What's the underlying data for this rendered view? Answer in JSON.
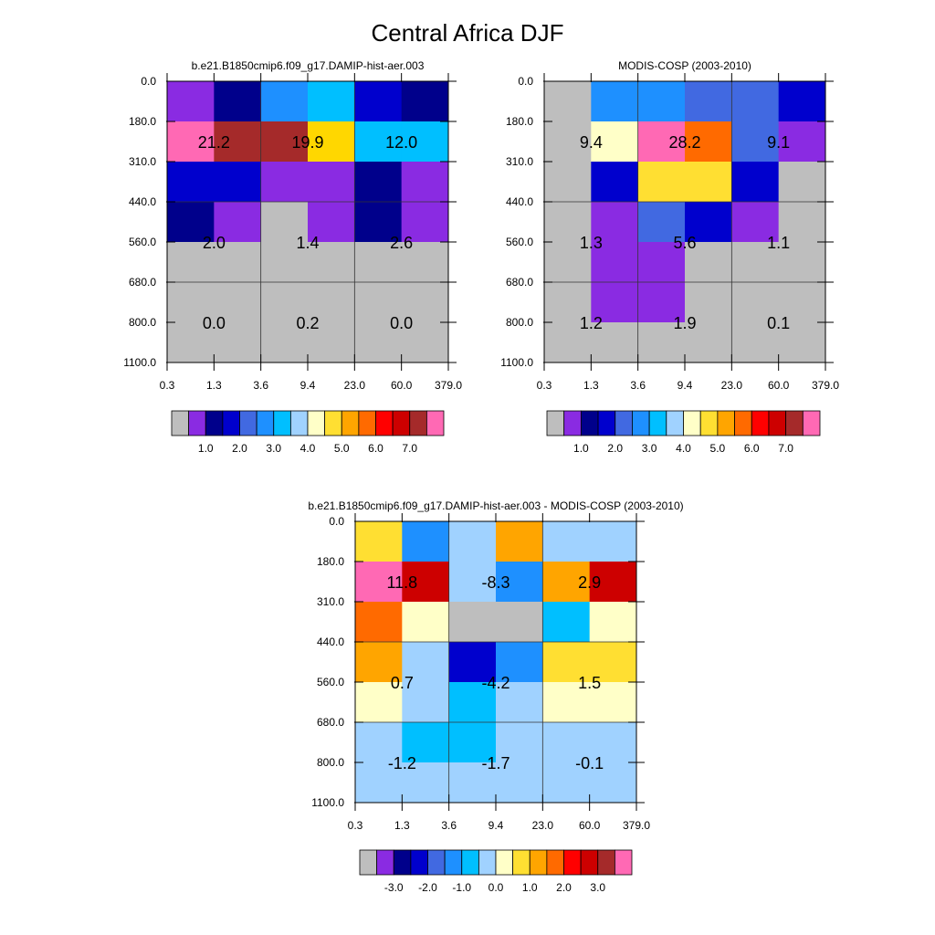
{
  "title": "Central Africa DJF",
  "colors": {
    "frame": "#000000",
    "grid": "#333333"
  },
  "chart_data": [
    {
      "type": "heatmap",
      "title": "b.e21.B1850cmip6.f09_g17.DAMIP-hist-aer.003",
      "x_ticks": [
        "0.3",
        "1.3",
        "3.6",
        "9.4",
        "23.0",
        "60.0",
        "379.0"
      ],
      "y_ticks": [
        "0.0",
        "180.0",
        "310.0",
        "440.0",
        "560.0",
        "680.0",
        "800.0",
        "1100.0"
      ],
      "cell_colors": [
        [
          "#8a2be2",
          "#00008b",
          "#1e90ff",
          "#00bfff",
          "#0000cd",
          "#00008b"
        ],
        [
          "#ff69b4",
          "#a52a2a",
          "#a52a2a",
          "#ffd700",
          "#00bfff",
          "#00bfff"
        ],
        [
          "#0000cd",
          "#0000cd",
          "#8a2be2",
          "#8a2be2",
          "#00008b",
          "#8a2be2"
        ],
        [
          "#00008b",
          "#8a2be2",
          "#bebebe",
          "#8a2be2",
          "#00008b",
          "#8a2be2"
        ],
        [
          "#bebebe",
          "#bebebe",
          "#bebebe",
          "#bebebe",
          "#bebebe",
          "#bebebe"
        ],
        [
          "#bebebe",
          "#bebebe",
          "#bebebe",
          "#bebebe",
          "#bebebe",
          "#bebebe"
        ],
        [
          "#bebebe",
          "#bebebe",
          "#bebebe",
          "#bebebe",
          "#bebebe",
          "#bebebe"
        ]
      ],
      "block_values": [
        "21.2",
        "19.9",
        "12.0",
        "2.0",
        "1.4",
        "2.6",
        "0.0",
        "0.2",
        "0.0"
      ],
      "colorbar": {
        "colors": [
          "#bebebe",
          "#8a2be2",
          "#00008b",
          "#0000cd",
          "#4169e1",
          "#1e90ff",
          "#00bfff",
          "#a0d2ff",
          "#ffffc8",
          "#ffdf32",
          "#ffa500",
          "#ff6a00",
          "#ff0000",
          "#cd0000",
          "#a52a2a",
          "#ff69b4"
        ],
        "labels": [
          "1.0",
          "2.0",
          "3.0",
          "4.0",
          "5.0",
          "6.0",
          "7.0"
        ]
      }
    },
    {
      "type": "heatmap",
      "title": "MODIS-COSP (2003-2010)",
      "x_ticks": [
        "0.3",
        "1.3",
        "3.6",
        "9.4",
        "23.0",
        "60.0",
        "379.0"
      ],
      "y_ticks": [
        "0.0",
        "180.0",
        "310.0",
        "440.0",
        "560.0",
        "680.0",
        "800.0",
        "1100.0"
      ],
      "cell_colors": [
        [
          "#bebebe",
          "#1e90ff",
          "#1e90ff",
          "#4169e1",
          "#4169e1",
          "#0000cd"
        ],
        [
          "#bebebe",
          "#ffffc8",
          "#ff69b4",
          "#ff6a00",
          "#4169e1",
          "#8a2be2"
        ],
        [
          "#bebebe",
          "#0000cd",
          "#ffdf32",
          "#ffdf32",
          "#0000cd",
          "#bebebe"
        ],
        [
          "#bebebe",
          "#8a2be2",
          "#4169e1",
          "#0000cd",
          "#8a2be2",
          "#bebebe"
        ],
        [
          "#bebebe",
          "#8a2be2",
          "#8a2be2",
          "#bebebe",
          "#bebebe",
          "#bebebe"
        ],
        [
          "#bebebe",
          "#8a2be2",
          "#8a2be2",
          "#bebebe",
          "#bebebe",
          "#bebebe"
        ],
        [
          "#bebebe",
          "#bebebe",
          "#bebebe",
          "#bebebe",
          "#bebebe",
          "#bebebe"
        ]
      ],
      "block_values": [
        "9.4",
        "28.2",
        "9.1",
        "1.3",
        "5.6",
        "1.1",
        "1.2",
        "1.9",
        "0.1"
      ],
      "colorbar": {
        "colors": [
          "#bebebe",
          "#8a2be2",
          "#00008b",
          "#0000cd",
          "#4169e1",
          "#1e90ff",
          "#00bfff",
          "#a0d2ff",
          "#ffffc8",
          "#ffdf32",
          "#ffa500",
          "#ff6a00",
          "#ff0000",
          "#cd0000",
          "#a52a2a",
          "#ff69b4"
        ],
        "labels": [
          "1.0",
          "2.0",
          "3.0",
          "4.0",
          "5.0",
          "6.0",
          "7.0"
        ]
      }
    },
    {
      "type": "heatmap",
      "title": "b.e21.B1850cmip6.f09_g17.DAMIP-hist-aer.003 - MODIS-COSP (2003-2010)",
      "x_ticks": [
        "0.3",
        "1.3",
        "3.6",
        "9.4",
        "23.0",
        "60.0",
        "379.0"
      ],
      "y_ticks": [
        "0.0",
        "180.0",
        "310.0",
        "440.0",
        "560.0",
        "680.0",
        "800.0",
        "1100.0"
      ],
      "cell_colors": [
        [
          "#ffdf32",
          "#1e90ff",
          "#a0d2ff",
          "#ffa500",
          "#a0d2ff",
          "#a0d2ff"
        ],
        [
          "#ff69b4",
          "#cd0000",
          "#a0d2ff",
          "#1e90ff",
          "#ffa500",
          "#cd0000"
        ],
        [
          "#ff6a00",
          "#ffffc8",
          "#bebebe",
          "#bebebe",
          "#00bfff",
          "#ffffc8"
        ],
        [
          "#ffa500",
          "#a0d2ff",
          "#0000cd",
          "#1e90ff",
          "#ffdf32",
          "#ffdf32"
        ],
        [
          "#ffffc8",
          "#a0d2ff",
          "#00bfff",
          "#a0d2ff",
          "#ffffc8",
          "#ffffc8"
        ],
        [
          "#a0d2ff",
          "#00bfff",
          "#00bfff",
          "#a0d2ff",
          "#a0d2ff",
          "#a0d2ff"
        ],
        [
          "#a0d2ff",
          "#a0d2ff",
          "#a0d2ff",
          "#a0d2ff",
          "#a0d2ff",
          "#a0d2ff"
        ]
      ],
      "block_values": [
        "11.8",
        "-8.3",
        "2.9",
        "0.7",
        "-4.2",
        "1.5",
        "-1.2",
        "-1.7",
        "-0.1"
      ],
      "colorbar": {
        "colors": [
          "#bebebe",
          "#8a2be2",
          "#00008b",
          "#0000cd",
          "#4169e1",
          "#1e90ff",
          "#00bfff",
          "#a0d2ff",
          "#ffffc8",
          "#ffdf32",
          "#ffa500",
          "#ff6a00",
          "#ff0000",
          "#cd0000",
          "#a52a2a",
          "#ff69b4"
        ],
        "labels": [
          "-3.0",
          "-2.0",
          "-1.0",
          "0.0",
          "1.0",
          "2.0",
          "3.0"
        ]
      }
    }
  ]
}
